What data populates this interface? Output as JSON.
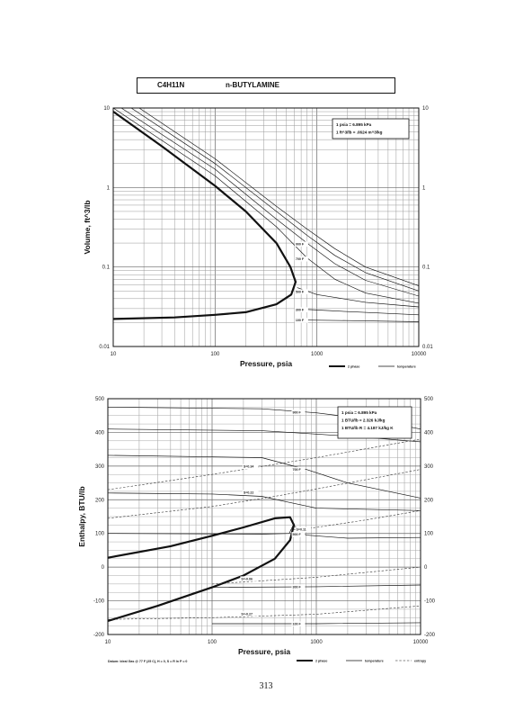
{
  "header": {
    "formula": "C4H11N",
    "compound": "n-BUTYLAMINE"
  },
  "page_number": "313",
  "chart_data": [
    {
      "type": "line",
      "xscale": "log",
      "yscale": "log",
      "xlim": [
        10,
        10000
      ],
      "ylim": [
        0.01,
        10
      ],
      "xlabel": "Pressure,  psia",
      "ylabel": "Volume, ft^3/lb",
      "x_ticks": [
        "10",
        "100",
        "1000",
        "10000"
      ],
      "y_ticks": [
        "0.01",
        "0.1",
        "1",
        "10"
      ],
      "y_ticks_right": [
        "0.01",
        "0.1",
        "1",
        "10"
      ],
      "notes": [
        "1 psia  =  6.895 kPa",
        "1 ft^3/lb  =  .0624 m^3/kg"
      ],
      "legend": [
        {
          "label": "2 phase",
          "style": "thick"
        },
        {
          "label": "temperature",
          "style": "thin"
        }
      ],
      "series": [
        {
          "kind": "2 phase",
          "points": [
            [
              10,
              9
            ],
            [
              30,
              3.3
            ],
            [
              100,
              1.05
            ],
            [
              200,
              0.5
            ],
            [
              400,
              0.2
            ],
            [
              550,
              0.1
            ],
            [
              618,
              0.065
            ],
            [
              560,
              0.045
            ],
            [
              400,
              0.034
            ],
            [
              200,
              0.027
            ],
            [
              100,
              0.025
            ],
            [
              40,
              0.0232
            ],
            [
              10,
              0.0222
            ]
          ]
        },
        {
          "name": "100 F",
          "kind": "temperature",
          "points": [
            [
              700,
              0.0215
            ],
            [
              2000,
              0.0212
            ],
            [
              10000,
              0.0205
            ]
          ]
        },
        {
          "name": "300 F",
          "kind": "temperature",
          "points": [
            [
              700,
              0.0295
            ],
            [
              2000,
              0.0275
            ],
            [
              10000,
              0.025
            ]
          ]
        },
        {
          "name": "500 F",
          "kind": "temperature",
          "points": [
            [
              640,
              0.055
            ],
            [
              1000,
              0.045
            ],
            [
              3000,
              0.036
            ],
            [
              10000,
              0.0315
            ]
          ]
        },
        {
          "name": "700 F",
          "kind": "temperature",
          "points": [
            [
              10,
              10
            ],
            [
              100,
              1.4
            ],
            [
              400,
              0.32
            ],
            [
              800,
              0.13
            ],
            [
              1500,
              0.07
            ],
            [
              3000,
              0.047
            ],
            [
              10000,
              0.035
            ]
          ]
        },
        {
          "name": "900 F",
          "kind": "temperature",
          "points": [
            [
              12,
              10
            ],
            [
              100,
              1.7
            ],
            [
              400,
              0.4
            ],
            [
              800,
              0.2
            ],
            [
              1500,
              0.11
            ],
            [
              3000,
              0.068
            ],
            [
              10000,
              0.043
            ]
          ]
        },
        {
          "kind": "temperature",
          "points": [
            [
              15,
              10
            ],
            [
              100,
              2.0
            ],
            [
              400,
              0.5
            ],
            [
              800,
              0.25
            ],
            [
              1500,
              0.14
            ],
            [
              3000,
              0.085
            ],
            [
              10000,
              0.05
            ]
          ]
        },
        {
          "kind": "temperature",
          "points": [
            [
              18,
              10
            ],
            [
              100,
              2.3
            ],
            [
              400,
              0.58
            ],
            [
              800,
              0.3
            ],
            [
              1500,
              0.17
            ],
            [
              3000,
              0.1
            ],
            [
              10000,
              0.058
            ]
          ]
        }
      ]
    },
    {
      "type": "line",
      "xscale": "log",
      "yscale": "linear",
      "xlim": [
        10,
        10000
      ],
      "ylim": [
        -200,
        500
      ],
      "xlabel": "Pressure,  psia",
      "ylabel": "Enthalpy, BTU/lb",
      "x_ticks": [
        "10",
        "100",
        "1000",
        "10000"
      ],
      "y_ticks": [
        "-200",
        "-100",
        "0",
        "100",
        "200",
        "300",
        "400",
        "500"
      ],
      "y_ticks_right": [
        "-200",
        "-100",
        "0",
        "100",
        "200",
        "300",
        "400",
        "500"
      ],
      "notes": [
        "1 psia  =  6.895 kPa",
        "1 BTU/lb  =  2.326 kJ/kg",
        "1 BTU/lb R  =  4.187 kJ/kg K"
      ],
      "footnote": "Datum: Ideal Gas @ 77 F (25 C),  H = 0,  S = R ln P = 0",
      "legend": [
        {
          "label": "2 phase",
          "style": "thick"
        },
        {
          "label": "temperature",
          "style": "thin"
        },
        {
          "label": "entropy",
          "style": "dashed"
        }
      ],
      "series": [
        {
          "kind": "2 phase",
          "points": [
            [
              10,
              -160
            ],
            [
              30,
              -115
            ],
            [
              100,
              -60
            ],
            [
              200,
              -25
            ],
            [
              400,
              25
            ],
            [
              560,
              80
            ],
            [
              610,
              125
            ],
            [
              560,
              148
            ],
            [
              400,
              145
            ],
            [
              200,
              118
            ],
            [
              100,
              93
            ],
            [
              40,
              62
            ],
            [
              10,
              28
            ]
          ]
        },
        {
          "name": "100 F",
          "kind": "temperature",
          "points": [
            [
              100,
              -168
            ],
            [
              1000,
              -168
            ],
            [
              10000,
              -165
            ]
          ]
        },
        {
          "name": "300 F",
          "kind": "temperature",
          "points": [
            [
              100,
              -60
            ],
            [
              1000,
              -58
            ],
            [
              10000,
              -53
            ]
          ]
        },
        {
          "name": "500 F",
          "kind": "temperature",
          "points": [
            [
              10,
              100
            ],
            [
              300,
              98
            ],
            [
              550,
              100
            ],
            [
              600,
              125
            ],
            [
              800,
              95
            ],
            [
              2000,
              86
            ],
            [
              10000,
              88
            ]
          ]
        },
        {
          "name": "700 F",
          "kind": "temperature",
          "points": [
            [
              10,
              332
            ],
            [
              300,
              325
            ],
            [
              800,
              290
            ],
            [
              2000,
              250
            ],
            [
              10000,
              205
            ]
          ]
        },
        {
          "name": "900 F",
          "kind": "temperature",
          "points": [
            [
              10,
              475
            ],
            [
              300,
              470
            ],
            [
              1000,
              458
            ],
            [
              3000,
              440
            ],
            [
              10000,
              410
            ]
          ]
        },
        {
          "kind": "temperature",
          "points": [
            [
              10,
              220
            ],
            [
              100,
              217
            ],
            [
              300,
              210
            ],
            [
              500,
              195
            ],
            [
              1000,
              175
            ],
            [
              10000,
              168
            ]
          ]
        },
        {
          "kind": "temperature",
          "points": [
            [
              10,
              410
            ],
            [
              300,
              405
            ],
            [
              1000,
              395
            ],
            [
              3000,
              385
            ],
            [
              10000,
              372
            ]
          ]
        },
        {
          "name": "S=0.34",
          "kind": "entropy",
          "points": [
            [
              10,
              230
            ],
            [
              100,
              275
            ],
            [
              1000,
              325
            ],
            [
              10000,
              380
            ]
          ]
        },
        {
          "name": "S=0.22",
          "kind": "entropy",
          "points": [
            [
              10,
              145
            ],
            [
              100,
              180
            ],
            [
              400,
              210
            ],
            [
              1000,
              232
            ],
            [
              10000,
              290
            ]
          ]
        },
        {
          "name": "S=0.11",
          "kind": "entropy",
          "points": [
            [
              560,
              110
            ],
            [
              1000,
              118
            ],
            [
              3000,
              140
            ],
            [
              10000,
              168
            ]
          ]
        },
        {
          "name": "S=-0.06",
          "kind": "entropy",
          "points": [
            [
              100,
              -50
            ],
            [
              1000,
              -30
            ],
            [
              10000,
              0
            ]
          ]
        },
        {
          "name": "S=-0.27",
          "kind": "entropy",
          "points": [
            [
              10,
              -155
            ],
            [
              100,
              -150
            ],
            [
              1000,
              -140
            ],
            [
              10000,
              -115
            ]
          ]
        }
      ]
    }
  ]
}
